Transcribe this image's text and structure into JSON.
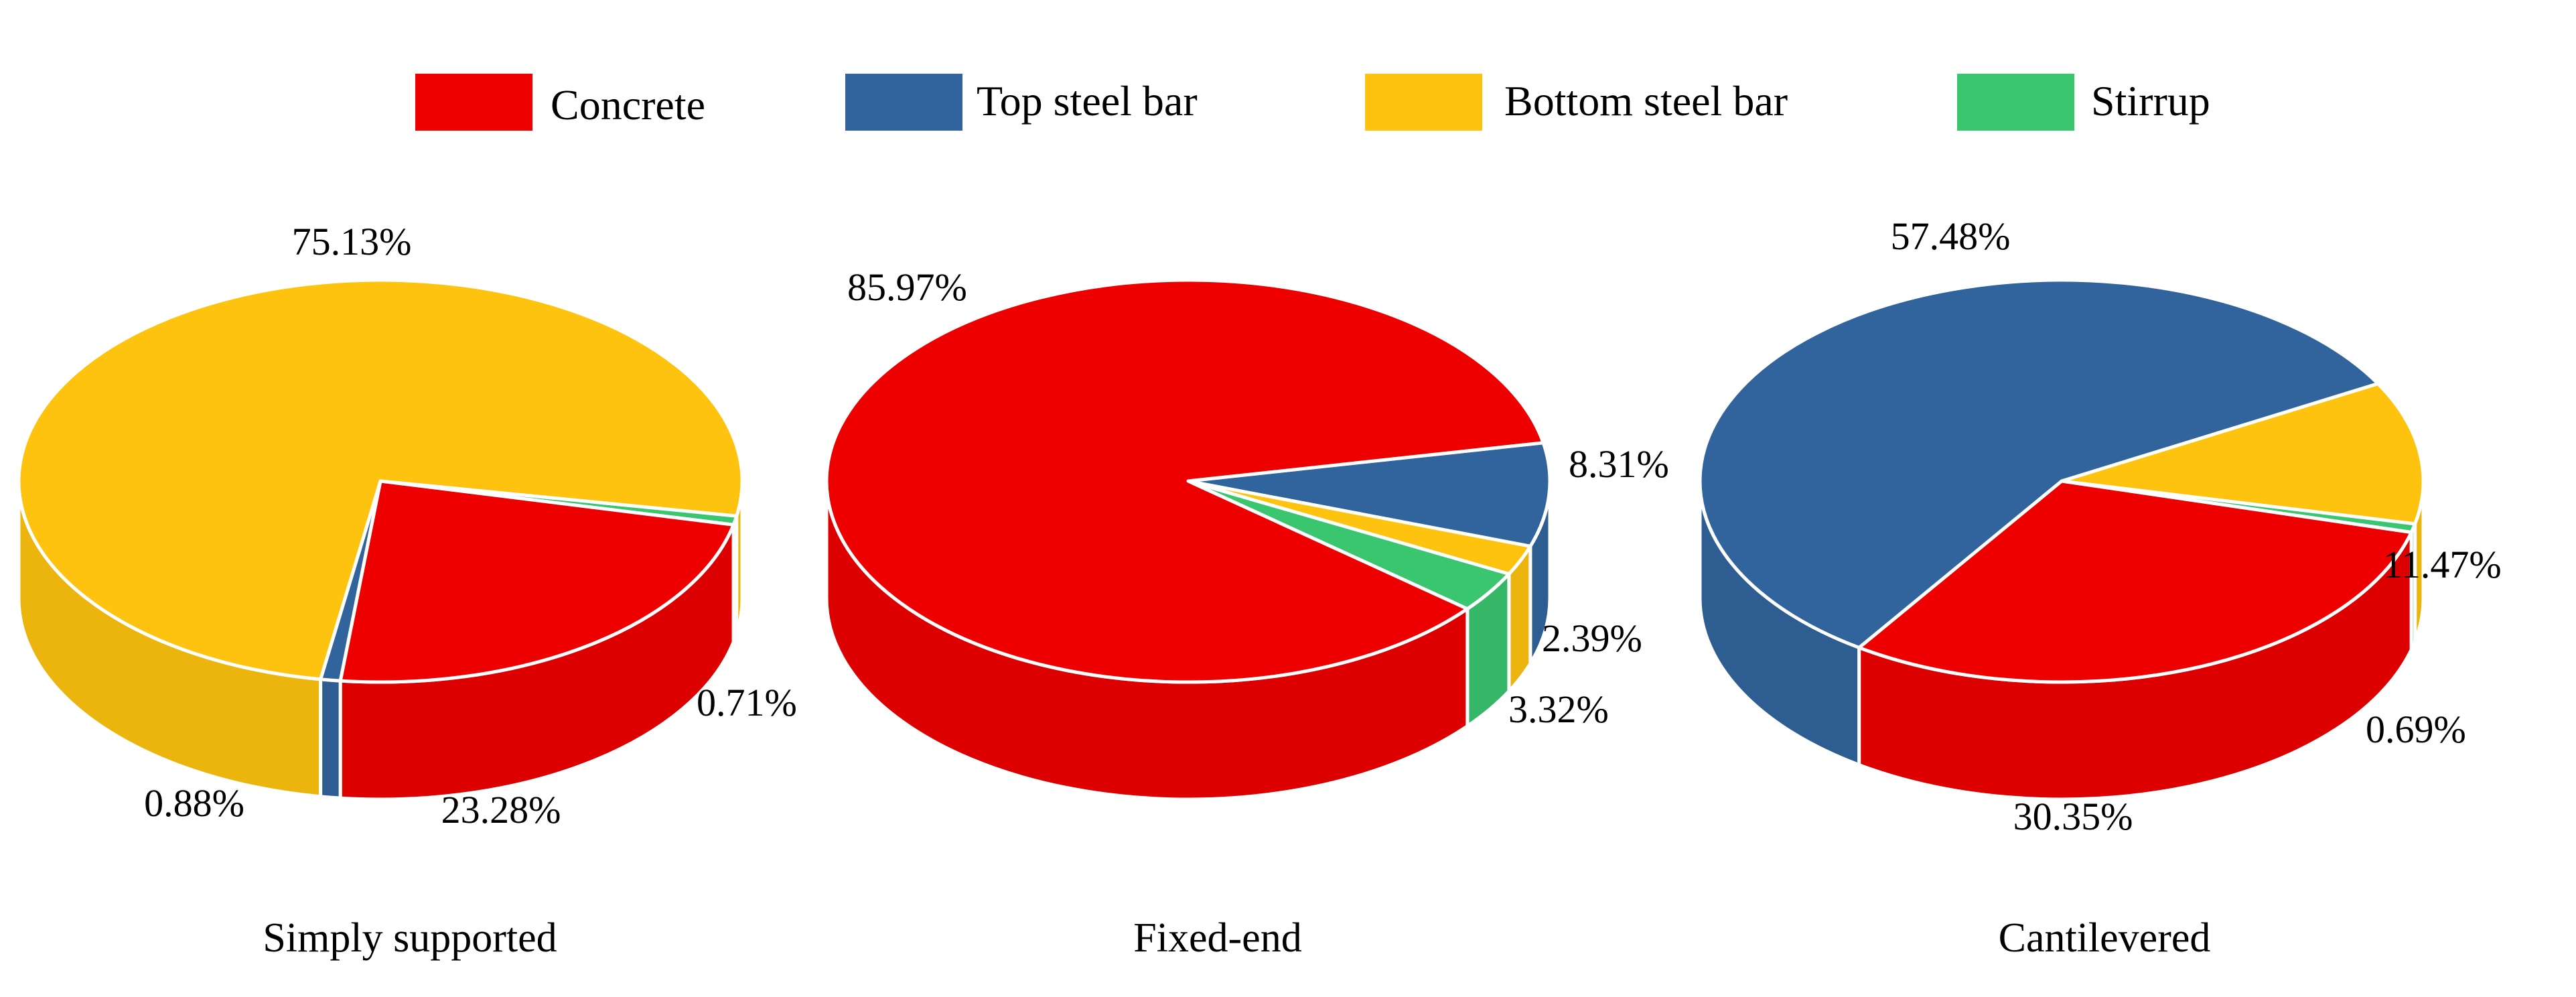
{
  "legend": [
    {
      "label": "Concrete",
      "color": "#ee0000"
    },
    {
      "label": "Top steel bar",
      "color": "#31649d"
    },
    {
      "label": "Bottom steel bar",
      "color": "#fec30f"
    },
    {
      "label": "Stirrup",
      "color": "#3ac56f"
    }
  ],
  "chart_data": [
    {
      "type": "pie",
      "title": "Simply supported",
      "categories": [
        "Concrete",
        "Top steel bar",
        "Bottom steel bar",
        "Stirrup"
      ],
      "values": [
        23.28,
        0.88,
        75.13,
        0.71
      ],
      "labels": [
        "23.28%",
        "0.88%",
        "75.13%",
        "0.71%"
      ]
    },
    {
      "type": "pie",
      "title": "Fixed-end",
      "categories": [
        "Concrete",
        "Top steel bar",
        "Bottom steel bar",
        "Stirrup"
      ],
      "values": [
        85.97,
        8.31,
        2.39,
        3.32
      ],
      "labels": [
        "85.97%",
        "8.31%",
        "2.39%",
        "3.32%"
      ]
    },
    {
      "type": "pie",
      "title": "Cantilevered",
      "categories": [
        "Concrete",
        "Top steel bar",
        "Bottom steel bar",
        "Stirrup"
      ],
      "values": [
        30.35,
        57.48,
        11.47,
        0.69
      ],
      "labels": [
        "30.35%",
        "57.48%",
        "11.47%",
        "0.69%"
      ]
    }
  ]
}
